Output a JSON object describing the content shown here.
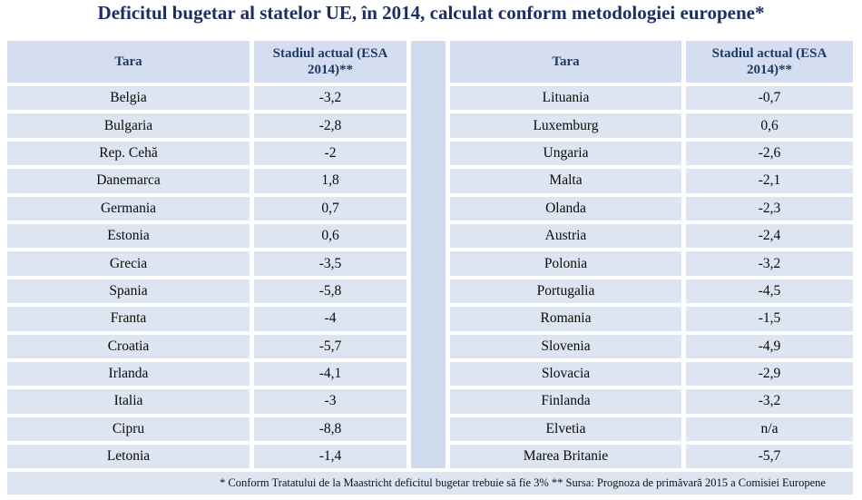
{
  "chart_data": {
    "type": "table",
    "title": "Deficitul bugetar al statelor UE, în 2014, calculat conform metodologiei europene*",
    "footnote": "* Conform Tratatului de la Maastricht deficitul bugetar trebuie să fie 3% ** Sursa: Prognoza de primăvară 2015 a Comisiei Europene",
    "tables": [
      {
        "headers": {
          "country": "Tara",
          "value": "Stadiul actual (ESA 2014)**"
        },
        "rows": [
          {
            "country": "Belgia",
            "value": "-3,2"
          },
          {
            "country": "Bulgaria",
            "value": "-2,8"
          },
          {
            "country": "Rep. Cehă",
            "value": "-2"
          },
          {
            "country": "Danemarca",
            "value": "1,8"
          },
          {
            "country": "Germania",
            "value": "0,7"
          },
          {
            "country": "Estonia",
            "value": "0,6"
          },
          {
            "country": "Grecia",
            "value": "-3,5"
          },
          {
            "country": "Spania",
            "value": "-5,8"
          },
          {
            "country": "Franta",
            "value": "-4"
          },
          {
            "country": "Croatia",
            "value": "-5,7"
          },
          {
            "country": "Irlanda",
            "value": "-4,1"
          },
          {
            "country": "Italia",
            "value": "-3"
          },
          {
            "country": "Cipru",
            "value": "-8,8"
          },
          {
            "country": "Letonia",
            "value": "-1,4"
          }
        ]
      },
      {
        "headers": {
          "country": "Tara",
          "value": "Stadiul actual (ESA 2014)**"
        },
        "rows": [
          {
            "country": "Lituania",
            "value": "-0,7"
          },
          {
            "country": "Luxemburg",
            "value": "0,6"
          },
          {
            "country": "Ungaria",
            "value": "-2,6"
          },
          {
            "country": "Malta",
            "value": "-2,1"
          },
          {
            "country": "Olanda",
            "value": "-2,3"
          },
          {
            "country": "Austria",
            "value": "-2,4"
          },
          {
            "country": "Polonia",
            "value": "-3,2"
          },
          {
            "country": "Portugalia",
            "value": "-4,5"
          },
          {
            "country": "Romania",
            "value": "-1,5"
          },
          {
            "country": "Slovenia",
            "value": "-4,9"
          },
          {
            "country": "Slovacia",
            "value": "-2,9"
          },
          {
            "country": "Finlanda",
            "value": "-3,2"
          },
          {
            "country": "Elvetia",
            "value": "n/a"
          },
          {
            "country": "Marea Britanie",
            "value": "-5,7"
          }
        ]
      }
    ],
    "colors": {
      "title_text": "#1c2e63",
      "header_text": "#1f3864",
      "cell_background": "#dde5f2",
      "header_background": "#d4def0",
      "divider_background": "#d0dbee",
      "body_text": "#0a0a0a",
      "page_background": "#ffffff"
    }
  }
}
